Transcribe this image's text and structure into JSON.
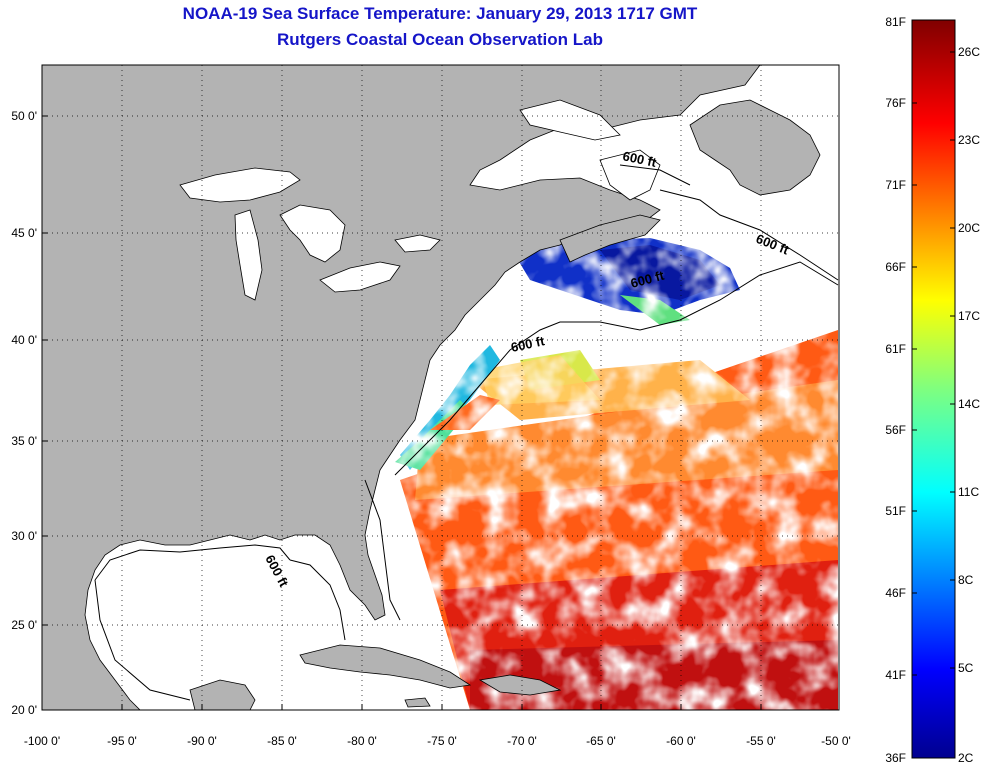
{
  "title": {
    "line1": "NOAA-19 Sea Surface Temperature:  January 29, 2013 1717 GMT",
    "line2": "Rutgers Coastal Ocean Observation Lab"
  },
  "axes": {
    "x_ticks": [
      "-100 0'",
      "-95 0'",
      "-90 0'",
      "-85 0'",
      "-80 0'",
      "-75 0'",
      "-70 0'",
      "-65 0'",
      "-60 0'",
      "-55 0'",
      "-50 0'"
    ],
    "y_ticks": [
      "20 0'",
      "25 0'",
      "30 0'",
      "35 0'",
      "40 0'",
      "45 0'",
      "50 0'"
    ],
    "lon_range": [
      -100,
      -50
    ],
    "lat_range": [
      20,
      52
    ]
  },
  "contour_labels": [
    "600 ft",
    "600 ft",
    "600 ft",
    "600 ft",
    "600 ft"
  ],
  "colorbar": {
    "fahrenheit": [
      "81F",
      "76F",
      "71F",
      "66F",
      "61F",
      "56F",
      "51F",
      "46F",
      "41F",
      "36F"
    ],
    "celsius": [
      "26C",
      "23C",
      "20C",
      "17C",
      "14C",
      "11C",
      "8C",
      "5C",
      "2C"
    ],
    "range_c": [
      2,
      27
    ]
  },
  "colors": {
    "land": "#b3b3b3",
    "ocean": "#ffffff",
    "title": "#1515c8"
  }
}
